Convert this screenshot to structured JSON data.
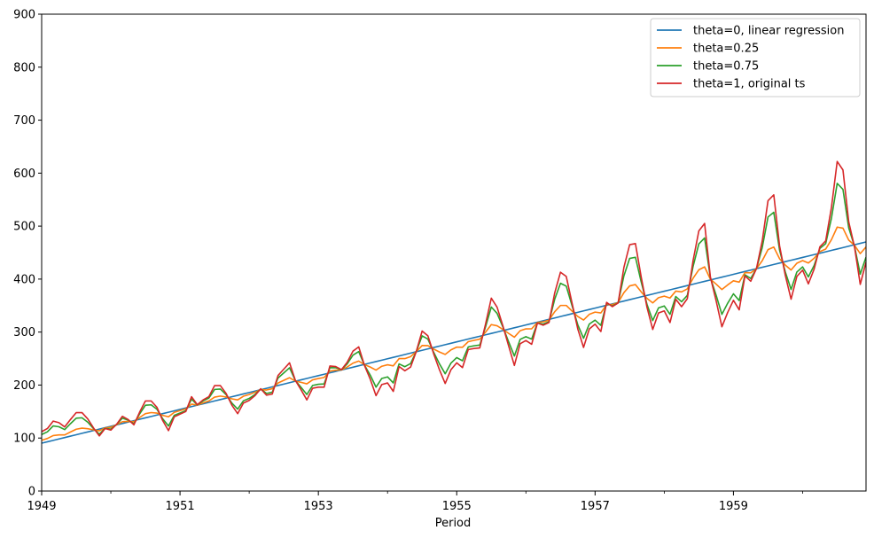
{
  "chart_data": {
    "type": "line",
    "xlabel": "Period",
    "ylabel": "",
    "title": "",
    "xlim": [
      1949.0,
      1960.9167
    ],
    "ylim": [
      0,
      900
    ],
    "yticks": [
      0,
      100,
      200,
      300,
      400,
      500,
      600,
      700,
      800,
      900
    ],
    "xticks": [
      {
        "value": 1949,
        "label": "1949"
      },
      {
        "value": 1951,
        "label": "1951"
      },
      {
        "value": 1953,
        "label": "1953"
      },
      {
        "value": 1955,
        "label": "1955"
      },
      {
        "value": 1957,
        "label": "1957"
      },
      {
        "value": 1959,
        "label": "1959"
      }
    ],
    "minor_xticks": [
      1950,
      1952,
      1954,
      1956,
      1958,
      1960
    ],
    "grid": false,
    "legend_position": "top-right",
    "x": {
      "start_year": 1949,
      "freq": "monthly",
      "count": 144
    },
    "series": [
      {
        "name": "theta=0, linear regression",
        "color": "#1f77b4",
        "linear": {
          "start": 90.3,
          "end": 470.1
        }
      },
      {
        "name": "theta=0.25",
        "color": "#ff7f0e",
        "blend": 0.25
      },
      {
        "name": "theta=0.75",
        "color": "#2ca02c",
        "blend": 0.75
      },
      {
        "name": "theta=1, original ts",
        "color": "#d62728",
        "values": [
          112,
          118,
          132,
          129,
          121,
          135,
          148,
          148,
          136,
          119,
          104,
          118,
          115,
          126,
          141,
          135,
          125,
          149,
          170,
          170,
          158,
          133,
          114,
          140,
          145,
          150,
          178,
          163,
          172,
          178,
          199,
          199,
          184,
          162,
          146,
          166,
          171,
          180,
          193,
          181,
          183,
          218,
          230,
          242,
          209,
          191,
          172,
          194,
          196,
          196,
          236,
          235,
          229,
          243,
          264,
          272,
          237,
          211,
          180,
          201,
          204,
          188,
          235,
          227,
          234,
          264,
          302,
          293,
          259,
          229,
          203,
          229,
          242,
          233,
          267,
          269,
          270,
          315,
          364,
          347,
          312,
          274,
          237,
          278,
          284,
          277,
          317,
          313,
          318,
          374,
          413,
          405,
          355,
          306,
          271,
          306,
          315,
          301,
          356,
          348,
          355,
          422,
          465,
          467,
          404,
          347,
          305,
          336,
          340,
          318,
          362,
          348,
          363,
          435,
          491,
          505,
          404,
          359,
          310,
          337,
          360,
          342,
          406,
          396,
          420,
          472,
          548,
          559,
          463,
          407,
          362,
          405,
          417,
          391,
          419,
          461,
          472,
          535,
          622,
          606,
          508,
          461,
          390,
          432
        ]
      }
    ]
  }
}
